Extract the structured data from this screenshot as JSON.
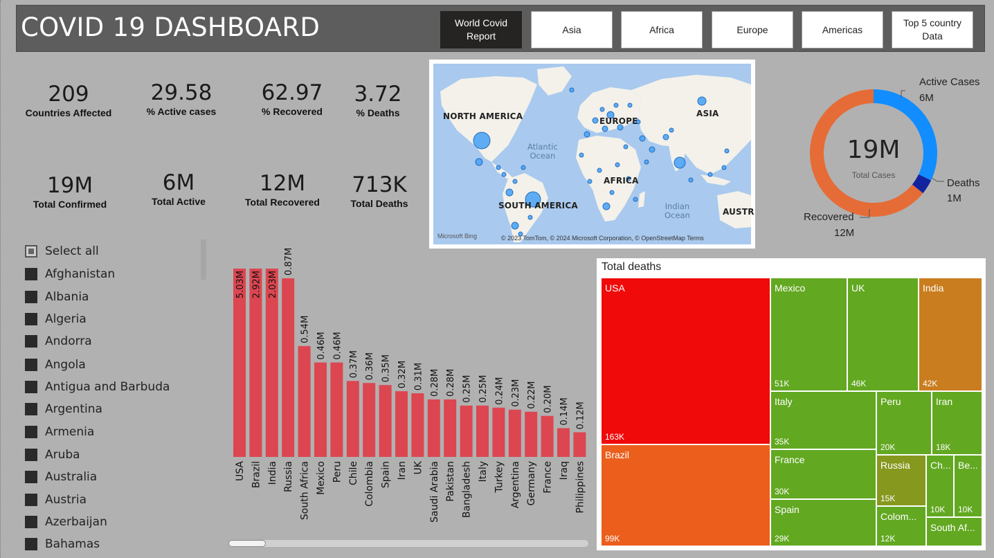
{
  "header": {
    "title": "COVID 19 DASHBOARD",
    "nav": [
      {
        "label": "World Covid Report",
        "active": true
      },
      {
        "label": "Asia"
      },
      {
        "label": "Africa"
      },
      {
        "label": "Europe"
      },
      {
        "label": "Americas"
      },
      {
        "label": "Top 5 country Data"
      }
    ]
  },
  "kpis": [
    {
      "value": "209",
      "label": "Countries Affected"
    },
    {
      "value": "29.58",
      "label": "% Active cases"
    },
    {
      "value": "62.97",
      "label": "% Recovered"
    },
    {
      "value": "3.72",
      "label": "% Deaths"
    },
    {
      "value": "19M",
      "label": "Total Confirmed"
    },
    {
      "value": "6M",
      "label": "Total Active"
    },
    {
      "value": "12M",
      "label": "Total Recovered"
    },
    {
      "value": "713K",
      "label": "Total Deaths"
    }
  ],
  "map": {
    "labels": [
      "NORTH AMERICA",
      "EUROPE",
      "ASIA",
      "AFRICA",
      "SOUTH AMERICA",
      "AUSTR"
    ],
    "oceans": [
      "Atlantic\nOcean",
      "Indian\nOcean"
    ],
    "bing": "Microsoft Bing",
    "copyright": "© 2023 TomTom, © 2024 Microsoft Corporation, © OpenStreetMap  Terms"
  },
  "donut": {
    "center_value": "19M",
    "center_label": "Total Cases",
    "segments": [
      {
        "name": "Active Cases",
        "label": "6M",
        "value": 6,
        "color": "#118dff"
      },
      {
        "name": "Deaths",
        "label": "1M",
        "value": 0.713,
        "color": "#12239e"
      },
      {
        "name": "Recovered",
        "label": "12M",
        "value": 12,
        "color": "#e66c37"
      }
    ]
  },
  "slicer": {
    "items": [
      "Select all",
      "Afghanistan",
      "Albania",
      "Algeria",
      "Andorra",
      "Angola",
      "Antigua and Barbuda",
      "Argentina",
      "Armenia",
      "Aruba",
      "Australia",
      "Austria",
      "Azerbaijan",
      "Bahamas"
    ]
  },
  "chart_data": [
    {
      "type": "bar",
      "title": "",
      "categories": [
        "USA",
        "Brazil",
        "India",
        "Russia",
        "South Africa",
        "Mexico",
        "Peru",
        "Chile",
        "Colombia",
        "Spain",
        "Iran",
        "UK",
        "Saudi Arabia",
        "Pakistan",
        "Bangladesh",
        "Italy",
        "Turkey",
        "Argentina",
        "Germany",
        "France",
        "Iraq",
        "Philippines"
      ],
      "values": [
        5.03,
        2.92,
        2.03,
        0.87,
        0.54,
        0.46,
        0.46,
        0.37,
        0.36,
        0.35,
        0.32,
        0.31,
        0.28,
        0.28,
        0.25,
        0.25,
        0.24,
        0.23,
        0.22,
        0.2,
        0.14,
        0.12
      ],
      "value_labels": [
        "5.03M",
        "2.92M",
        "2.03M",
        "0.87M",
        "0.54M",
        "0.46M",
        "0.46M",
        "0.37M",
        "0.36M",
        "0.35M",
        "0.32M",
        "0.31M",
        "0.28M",
        "0.28M",
        "0.25M",
        "0.25M",
        "0.24M",
        "0.23M",
        "0.22M",
        "0.20M",
        "0.14M",
        "0.12M"
      ],
      "color": "#dc4650",
      "axis_break_after_index": 2
    },
    {
      "type": "treemap",
      "title": "Total deaths",
      "items": [
        {
          "name": "USA",
          "label": "163K",
          "value": 163,
          "color": "#f00a0a"
        },
        {
          "name": "Brazil",
          "label": "99K",
          "value": 99,
          "color": "#eb5e1c"
        },
        {
          "name": "Mexico",
          "label": "51K",
          "value": 51,
          "color": "#62a821"
        },
        {
          "name": "UK",
          "label": "46K",
          "value": 46,
          "color": "#62a821"
        },
        {
          "name": "India",
          "label": "42K",
          "value": 42,
          "color": "#c97d1e"
        },
        {
          "name": "Italy",
          "label": "35K",
          "value": 35,
          "color": "#62a821"
        },
        {
          "name": "Peru",
          "label": "20K",
          "value": 20,
          "color": "#62a821"
        },
        {
          "name": "Iran",
          "label": "18K",
          "value": 18,
          "color": "#62a821"
        },
        {
          "name": "France",
          "label": "30K",
          "value": 30,
          "color": "#62a821"
        },
        {
          "name": "Russia",
          "label": "15K",
          "value": 15,
          "color": "#86981e"
        },
        {
          "name": "Ch...",
          "label": "10K",
          "value": 10,
          "color": "#62a821"
        },
        {
          "name": "Be...",
          "label": "10K",
          "value": 10,
          "color": "#62a821"
        },
        {
          "name": "Spain",
          "label": "29K",
          "value": 29,
          "color": "#62a821"
        },
        {
          "name": "Colom...",
          "label": "12K",
          "value": 12,
          "color": "#62a821"
        },
        {
          "name": "South Af...",
          "label": "",
          "value": 10,
          "color": "#62a821"
        }
      ]
    }
  ]
}
